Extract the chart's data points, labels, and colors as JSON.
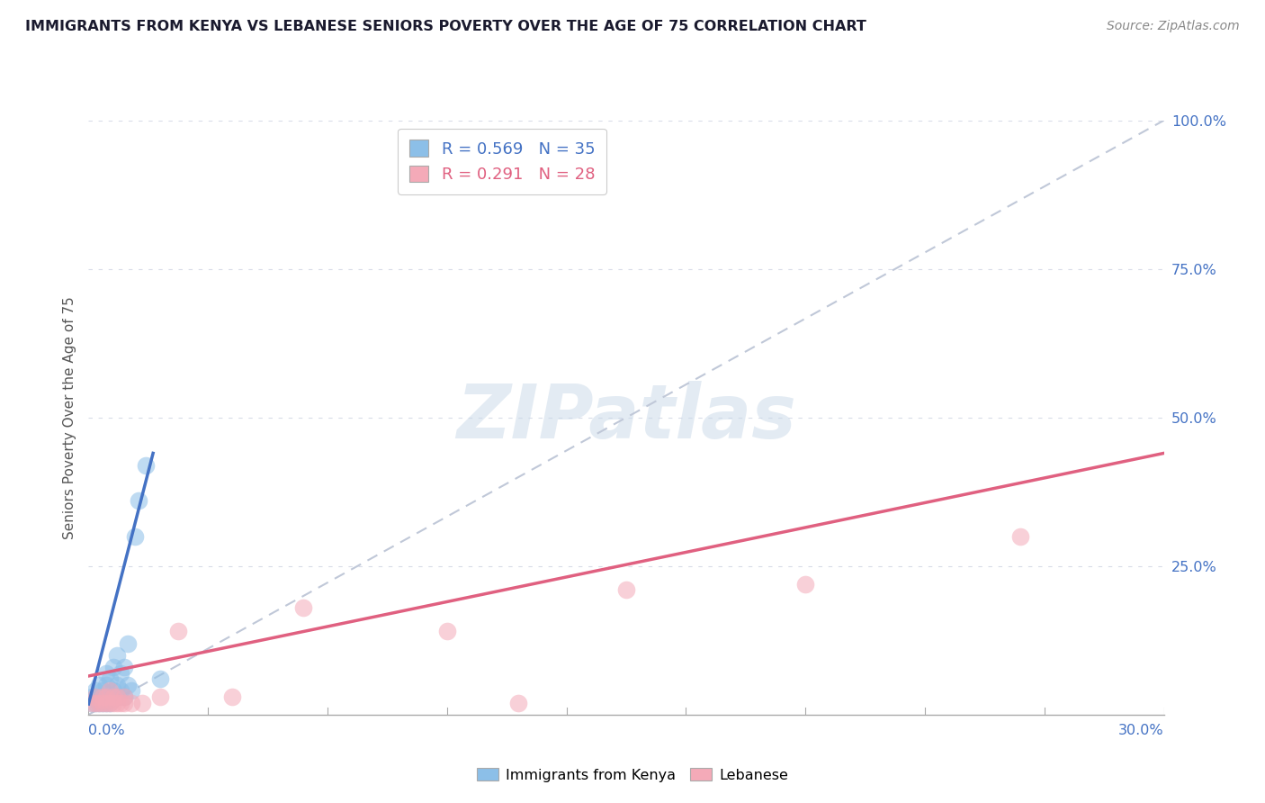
{
  "title": "IMMIGRANTS FROM KENYA VS LEBANESE SENIORS POVERTY OVER THE AGE OF 75 CORRELATION CHART",
  "source": "Source: ZipAtlas.com",
  "ylabel": "Seniors Poverty Over the Age of 75",
  "xlim": [
    0.0,
    0.3
  ],
  "ylim": [
    0.0,
    1.0
  ],
  "ytick_vals": [
    0.0,
    0.25,
    0.5,
    0.75,
    1.0
  ],
  "ytick_labels": [
    "",
    "25.0%",
    "50.0%",
    "75.0%",
    "100.0%"
  ],
  "legend_kenya_R": 0.569,
  "legend_kenya_N": 35,
  "legend_lebanese_R": 0.291,
  "legend_lebanese_N": 28,
  "kenya_scatter_color": "#8cbfe8",
  "lebanese_scatter_color": "#f4aab8",
  "kenya_line_color": "#4472c4",
  "lebanese_line_color": "#e06080",
  "diagonal_color": "#c0c8d8",
  "grid_color": "#d8dce8",
  "title_color": "#1a1a2e",
  "source_color": "#888888",
  "ylabel_color": "#555555",
  "ytick_color": "#4472c4",
  "xlabel_color": "#4472c4",
  "watermark_color": "#c8d8e8",
  "kenya_points": [
    [
      0.001,
      0.02
    ],
    [
      0.001,
      0.03
    ],
    [
      0.002,
      0.02
    ],
    [
      0.002,
      0.03
    ],
    [
      0.002,
      0.04
    ],
    [
      0.003,
      0.02
    ],
    [
      0.003,
      0.03
    ],
    [
      0.003,
      0.05
    ],
    [
      0.004,
      0.02
    ],
    [
      0.004,
      0.03
    ],
    [
      0.004,
      0.04
    ],
    [
      0.005,
      0.02
    ],
    [
      0.005,
      0.03
    ],
    [
      0.005,
      0.05
    ],
    [
      0.005,
      0.07
    ],
    [
      0.006,
      0.02
    ],
    [
      0.006,
      0.03
    ],
    [
      0.006,
      0.06
    ],
    [
      0.007,
      0.03
    ],
    [
      0.007,
      0.04
    ],
    [
      0.007,
      0.08
    ],
    [
      0.008,
      0.03
    ],
    [
      0.008,
      0.05
    ],
    [
      0.008,
      0.1
    ],
    [
      0.009,
      0.04
    ],
    [
      0.009,
      0.07
    ],
    [
      0.01,
      0.03
    ],
    [
      0.01,
      0.08
    ],
    [
      0.011,
      0.05
    ],
    [
      0.011,
      0.12
    ],
    [
      0.012,
      0.04
    ],
    [
      0.013,
      0.3
    ],
    [
      0.014,
      0.36
    ],
    [
      0.016,
      0.42
    ],
    [
      0.02,
      0.06
    ]
  ],
  "lebanese_points": [
    [
      0.001,
      0.02
    ],
    [
      0.002,
      0.02
    ],
    [
      0.002,
      0.03
    ],
    [
      0.003,
      0.02
    ],
    [
      0.004,
      0.02
    ],
    [
      0.004,
      0.03
    ],
    [
      0.005,
      0.02
    ],
    [
      0.005,
      0.03
    ],
    [
      0.006,
      0.02
    ],
    [
      0.006,
      0.04
    ],
    [
      0.007,
      0.02
    ],
    [
      0.007,
      0.03
    ],
    [
      0.008,
      0.02
    ],
    [
      0.008,
      0.03
    ],
    [
      0.009,
      0.02
    ],
    [
      0.01,
      0.02
    ],
    [
      0.01,
      0.03
    ],
    [
      0.012,
      0.02
    ],
    [
      0.015,
      0.02
    ],
    [
      0.02,
      0.03
    ],
    [
      0.025,
      0.14
    ],
    [
      0.04,
      0.03
    ],
    [
      0.06,
      0.18
    ],
    [
      0.1,
      0.14
    ],
    [
      0.12,
      0.02
    ],
    [
      0.15,
      0.21
    ],
    [
      0.2,
      0.22
    ],
    [
      0.26,
      0.3
    ]
  ],
  "kenya_line_pts": [
    [
      0.0,
      0.018
    ],
    [
      0.018,
      0.44
    ]
  ],
  "lebanese_line_pts": [
    [
      0.0,
      0.065
    ],
    [
      0.3,
      0.44
    ]
  ],
  "bg_color": "#ffffff"
}
